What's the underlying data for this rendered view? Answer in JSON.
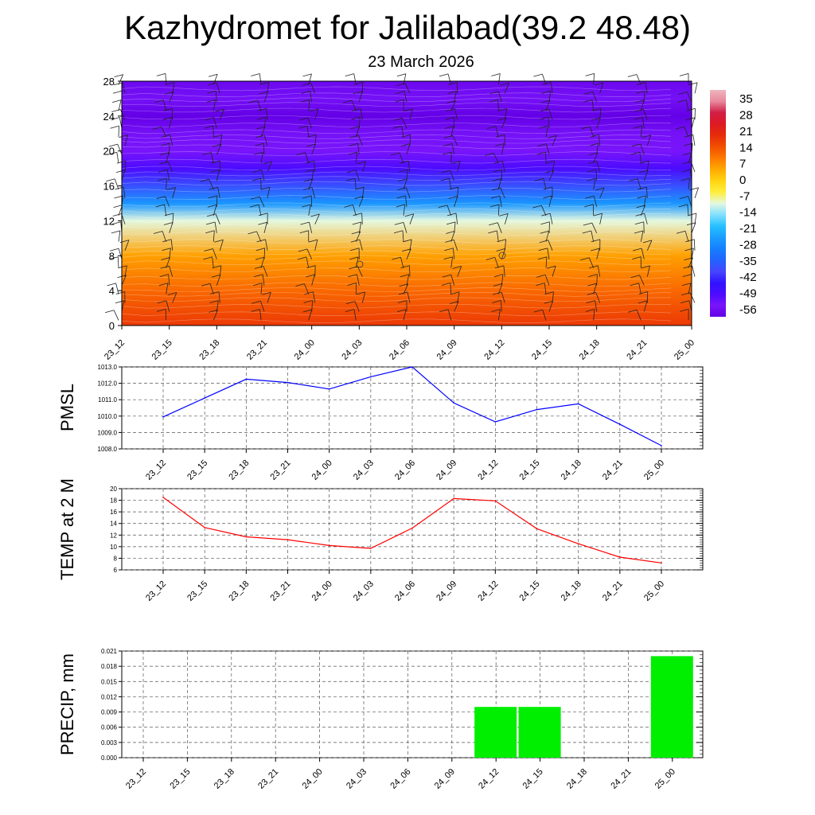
{
  "header": {
    "title": "Kazhydromet for Jalilabad(39.2 48.48)",
    "subtitle": "23 March 2026"
  },
  "chart_data": [
    {
      "type": "heatmap",
      "title": "Kazhydromet for Jalilabad(39.2 48.48)",
      "subtitle": "23 March 2026",
      "xlabel": "",
      "ylabel": "",
      "x_tick_labels": [
        "23_12",
        "23_15",
        "23_18",
        "23_21",
        "24_00",
        "24_03",
        "24_06",
        "24_09",
        "24_12",
        "24_15",
        "24_18",
        "24_21",
        "25_00"
      ],
      "y_ticks": [
        0,
        4,
        8,
        12,
        16,
        20,
        24,
        28
      ],
      "ylim": [
        0,
        28
      ],
      "colorbar_labels": [
        "35",
        "28",
        "21",
        "14",
        "7",
        "0",
        "-7",
        "-14",
        "-21",
        "-28",
        "-35",
        "-42",
        "-49",
        "-56"
      ],
      "colorbar_values": [
        35,
        28,
        21,
        14,
        7,
        0,
        -7,
        -14,
        -21,
        -28,
        -35,
        -42,
        -49,
        -56
      ],
      "temperature_profile": [
        {
          "level": 0,
          "value": 16
        },
        {
          "level": 4,
          "value": 10
        },
        {
          "level": 8,
          "value": 4
        },
        {
          "level": 12,
          "value": -12
        },
        {
          "level": 14,
          "value": -28
        },
        {
          "level": 16,
          "value": -40
        },
        {
          "level": 18,
          "value": -52
        },
        {
          "level": 20,
          "value": -57
        },
        {
          "level": 22,
          "value": -58
        },
        {
          "level": 24,
          "value": -62
        },
        {
          "level": 26,
          "value": -58
        },
        {
          "level": 28,
          "value": -60
        }
      ],
      "overlay": "wind barbs",
      "colors": {
        "warm": "#e32b00",
        "cold": "#2a00ff"
      }
    },
    {
      "type": "line",
      "ylabel": "PMSL",
      "categories": [
        "23_12",
        "23_15",
        "23_18",
        "23_21",
        "24_00",
        "24_03",
        "24_06",
        "24_09",
        "24_12",
        "24_15",
        "24_18",
        "24_21",
        "25_00"
      ],
      "values": [
        1009.95,
        1011.1,
        1012.25,
        1012.05,
        1011.65,
        1012.4,
        1013.0,
        1010.8,
        1009.65,
        1010.4,
        1010.75,
        1009.5,
        1008.2
      ],
      "ylim": [
        1008.0,
        1013.0
      ],
      "y_ticks": [
        1008.0,
        1009.0,
        1010.0,
        1011.0,
        1012.0,
        1013.0
      ],
      "y_tick_labels": [
        "1008.0",
        "1009.0",
        "1010.0",
        "1011.0",
        "1012.0",
        "1013.0"
      ],
      "color": "#0000ff",
      "grid": true
    },
    {
      "type": "line",
      "ylabel": "TEMP at 2 M",
      "categories": [
        "23_12",
        "23_15",
        "23_18",
        "23_21",
        "24_00",
        "24_03",
        "24_06",
        "24_09",
        "24_12",
        "24_15",
        "24_18",
        "24_21",
        "25_00"
      ],
      "values": [
        18.5,
        13.3,
        11.7,
        11.2,
        10.2,
        9.7,
        13.2,
        18.3,
        17.9,
        13.1,
        10.5,
        8.2,
        7.2
      ],
      "ylim": [
        6,
        20
      ],
      "y_ticks": [
        6,
        8,
        10,
        12,
        14,
        16,
        18,
        20
      ],
      "y_tick_labels": [
        "6",
        "8",
        "10",
        "12",
        "14",
        "16",
        "18",
        "20"
      ],
      "color": "#ff0000",
      "grid": true
    },
    {
      "type": "bar",
      "ylabel": "PRECIP, mm",
      "categories": [
        "23_12",
        "23_15",
        "23_18",
        "23_21",
        "24_00",
        "24_03",
        "24_06",
        "24_09",
        "24_12",
        "24_15",
        "24_18",
        "24_21",
        "25_00"
      ],
      "values": [
        0,
        0,
        0,
        0,
        0,
        0,
        0,
        0,
        0.01,
        0.01,
        0,
        0,
        0.02
      ],
      "ylim": [
        0,
        0.021
      ],
      "y_ticks": [
        0,
        0.003,
        0.006,
        0.009,
        0.012,
        0.015,
        0.018,
        0.021
      ],
      "y_tick_labels": [
        "0.000",
        "0.003",
        "0.006",
        "0.009",
        "0.012",
        "0.015",
        "0.018",
        "0.021"
      ],
      "color": "#00ee00",
      "grid": true
    }
  ]
}
